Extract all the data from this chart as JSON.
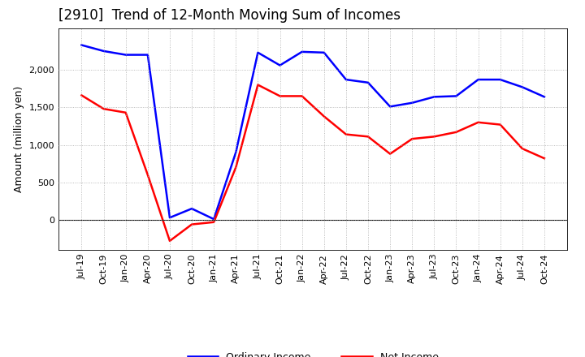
{
  "title": "[2910]  Trend of 12-Month Moving Sum of Incomes",
  "ylabel": "Amount (million yen)",
  "x_labels": [
    "Jul-19",
    "Oct-19",
    "Jan-20",
    "Apr-20",
    "Jul-20",
    "Oct-20",
    "Jan-21",
    "Apr-21",
    "Jul-21",
    "Oct-21",
    "Jan-22",
    "Apr-22",
    "Jul-22",
    "Oct-22",
    "Jan-23",
    "Apr-23",
    "Jul-23",
    "Oct-23",
    "Jan-24",
    "Apr-24",
    "Jul-24",
    "Oct-24"
  ],
  "ordinary_income": [
    2330,
    2250,
    2200,
    2200,
    30,
    150,
    10,
    900,
    2230,
    2060,
    2240,
    2230,
    1870,
    1830,
    1510,
    1560,
    1640,
    1650,
    1870,
    1870,
    1770,
    1640
  ],
  "net_income": [
    1660,
    1480,
    1430,
    600,
    -280,
    -60,
    -30,
    700,
    1800,
    1650,
    1650,
    1380,
    1140,
    1110,
    880,
    1080,
    1110,
    1170,
    1300,
    1270,
    950,
    820
  ],
  "ordinary_income_color": "#0000FF",
  "net_income_color": "#FF0000",
  "background_color": "#FFFFFF",
  "grid_color": "#AAAAAA",
  "ylim_min": -400,
  "ylim_max": 2550,
  "yticks": [
    0,
    500,
    1000,
    1500,
    2000
  ],
  "legend_ordinary": "Ordinary Income",
  "legend_net": "Net Income",
  "title_fontsize": 12,
  "axis_label_fontsize": 9,
  "tick_fontsize": 8,
  "line_width": 1.8
}
